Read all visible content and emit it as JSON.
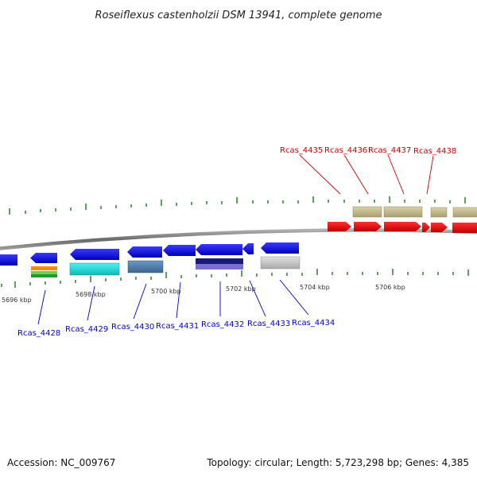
{
  "title": "Roseiflexus castenholzii DSM 13941, complete genome",
  "footer": {
    "accession": "Accession: NC_009767",
    "summary": "Topology: circular; Length: 5,723,298 bp; Genes: 4,385"
  },
  "colors": {
    "forward_gene": "#ff0000",
    "reverse_gene": "#0000ff",
    "label_forward": "#cc0000",
    "label_reverse": "#0000cc",
    "backbone": "#7f7f7f",
    "tick": "#1a7a1a"
  },
  "scale": {
    "unit": "kbp",
    "labels": [
      "5696 kbp",
      "5698 kbp",
      "5700 kbp",
      "5702 kbp",
      "5704 kbp",
      "5706 kbp"
    ]
  },
  "genes_forward": [
    {
      "label": "Rcas_4435"
    },
    {
      "label": "Rcas_4436"
    },
    {
      "label": "Rcas_4437"
    },
    {
      "label": "Rcas_4438"
    }
  ],
  "genes_reverse": [
    {
      "label": "Rcas_4428"
    },
    {
      "label": "Rcas_4429"
    },
    {
      "label": "Rcas_4430"
    },
    {
      "label": "Rcas_4431"
    },
    {
      "label": "Rcas_4432"
    },
    {
      "label": "Rcas_4433"
    },
    {
      "label": "Rcas_4434"
    }
  ]
}
